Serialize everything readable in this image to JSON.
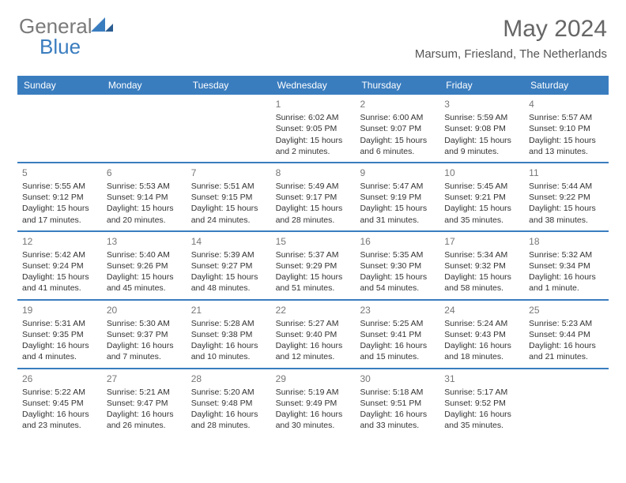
{
  "logo": {
    "text1": "General",
    "text2": "Blue"
  },
  "title": {
    "month_year": "May 2024",
    "location": "Marsum, Friesland, The Netherlands"
  },
  "colors": {
    "brand_blue": "#3a7dbf",
    "logo_gray": "#7a7a7a",
    "text": "#333333",
    "daynum": "#777777",
    "header_text": "#ffffff",
    "background": "#ffffff"
  },
  "day_headers": [
    "Sunday",
    "Monday",
    "Tuesday",
    "Wednesday",
    "Thursday",
    "Friday",
    "Saturday"
  ],
  "weeks": [
    [
      null,
      null,
      null,
      {
        "n": "1",
        "sr": "6:02 AM",
        "ss": "9:05 PM",
        "dl": "15 hours and 2 minutes."
      },
      {
        "n": "2",
        "sr": "6:00 AM",
        "ss": "9:07 PM",
        "dl": "15 hours and 6 minutes."
      },
      {
        "n": "3",
        "sr": "5:59 AM",
        "ss": "9:08 PM",
        "dl": "15 hours and 9 minutes."
      },
      {
        "n": "4",
        "sr": "5:57 AM",
        "ss": "9:10 PM",
        "dl": "15 hours and 13 minutes."
      }
    ],
    [
      {
        "n": "5",
        "sr": "5:55 AM",
        "ss": "9:12 PM",
        "dl": "15 hours and 17 minutes."
      },
      {
        "n": "6",
        "sr": "5:53 AM",
        "ss": "9:14 PM",
        "dl": "15 hours and 20 minutes."
      },
      {
        "n": "7",
        "sr": "5:51 AM",
        "ss": "9:15 PM",
        "dl": "15 hours and 24 minutes."
      },
      {
        "n": "8",
        "sr": "5:49 AM",
        "ss": "9:17 PM",
        "dl": "15 hours and 28 minutes."
      },
      {
        "n": "9",
        "sr": "5:47 AM",
        "ss": "9:19 PM",
        "dl": "15 hours and 31 minutes."
      },
      {
        "n": "10",
        "sr": "5:45 AM",
        "ss": "9:21 PM",
        "dl": "15 hours and 35 minutes."
      },
      {
        "n": "11",
        "sr": "5:44 AM",
        "ss": "9:22 PM",
        "dl": "15 hours and 38 minutes."
      }
    ],
    [
      {
        "n": "12",
        "sr": "5:42 AM",
        "ss": "9:24 PM",
        "dl": "15 hours and 41 minutes."
      },
      {
        "n": "13",
        "sr": "5:40 AM",
        "ss": "9:26 PM",
        "dl": "15 hours and 45 minutes."
      },
      {
        "n": "14",
        "sr": "5:39 AM",
        "ss": "9:27 PM",
        "dl": "15 hours and 48 minutes."
      },
      {
        "n": "15",
        "sr": "5:37 AM",
        "ss": "9:29 PM",
        "dl": "15 hours and 51 minutes."
      },
      {
        "n": "16",
        "sr": "5:35 AM",
        "ss": "9:30 PM",
        "dl": "15 hours and 54 minutes."
      },
      {
        "n": "17",
        "sr": "5:34 AM",
        "ss": "9:32 PM",
        "dl": "15 hours and 58 minutes."
      },
      {
        "n": "18",
        "sr": "5:32 AM",
        "ss": "9:34 PM",
        "dl": "16 hours and 1 minute."
      }
    ],
    [
      {
        "n": "19",
        "sr": "5:31 AM",
        "ss": "9:35 PM",
        "dl": "16 hours and 4 minutes."
      },
      {
        "n": "20",
        "sr": "5:30 AM",
        "ss": "9:37 PM",
        "dl": "16 hours and 7 minutes."
      },
      {
        "n": "21",
        "sr": "5:28 AM",
        "ss": "9:38 PM",
        "dl": "16 hours and 10 minutes."
      },
      {
        "n": "22",
        "sr": "5:27 AM",
        "ss": "9:40 PM",
        "dl": "16 hours and 12 minutes."
      },
      {
        "n": "23",
        "sr": "5:25 AM",
        "ss": "9:41 PM",
        "dl": "16 hours and 15 minutes."
      },
      {
        "n": "24",
        "sr": "5:24 AM",
        "ss": "9:43 PM",
        "dl": "16 hours and 18 minutes."
      },
      {
        "n": "25",
        "sr": "5:23 AM",
        "ss": "9:44 PM",
        "dl": "16 hours and 21 minutes."
      }
    ],
    [
      {
        "n": "26",
        "sr": "5:22 AM",
        "ss": "9:45 PM",
        "dl": "16 hours and 23 minutes."
      },
      {
        "n": "27",
        "sr": "5:21 AM",
        "ss": "9:47 PM",
        "dl": "16 hours and 26 minutes."
      },
      {
        "n": "28",
        "sr": "5:20 AM",
        "ss": "9:48 PM",
        "dl": "16 hours and 28 minutes."
      },
      {
        "n": "29",
        "sr": "5:19 AM",
        "ss": "9:49 PM",
        "dl": "16 hours and 30 minutes."
      },
      {
        "n": "30",
        "sr": "5:18 AM",
        "ss": "9:51 PM",
        "dl": "16 hours and 33 minutes."
      },
      {
        "n": "31",
        "sr": "5:17 AM",
        "ss": "9:52 PM",
        "dl": "16 hours and 35 minutes."
      },
      null
    ]
  ],
  "labels": {
    "sunrise": "Sunrise:",
    "sunset": "Sunset:",
    "daylight": "Daylight:"
  }
}
